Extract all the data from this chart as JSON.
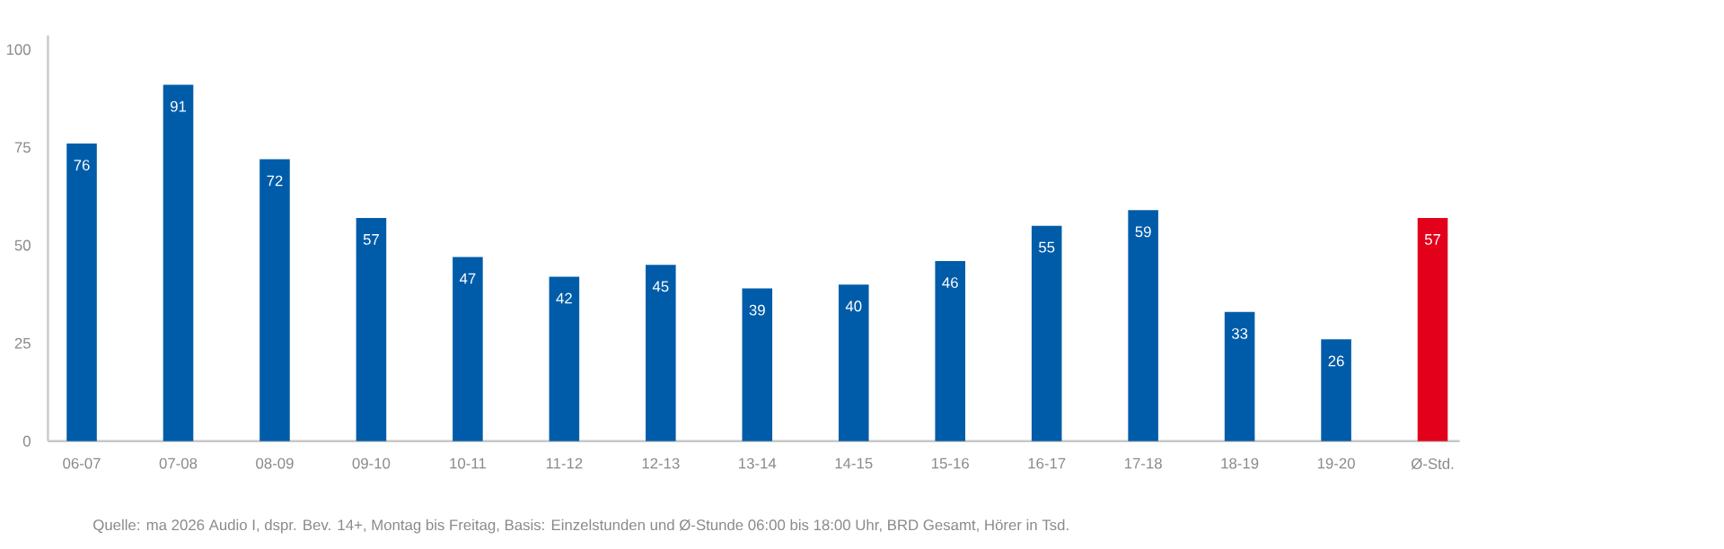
{
  "chart_data": {
    "type": "bar",
    "categories": [
      "06-07",
      "07-08",
      "08-09",
      "09-10",
      "10-11",
      "11-12",
      "12-13",
      "13-14",
      "14-15",
      "15-16",
      "16-17",
      "17-18",
      "18-19",
      "19-20",
      "Ø-Std."
    ],
    "values": [
      76,
      91,
      72,
      57,
      47,
      42,
      45,
      39,
      40,
      46,
      55,
      59,
      33,
      26,
      57
    ],
    "colors": [
      "#005ca9",
      "#005ca9",
      "#005ca9",
      "#005ca9",
      "#005ca9",
      "#005ca9",
      "#005ca9",
      "#005ca9",
      "#005ca9",
      "#005ca9",
      "#005ca9",
      "#005ca9",
      "#005ca9",
      "#005ca9",
      "#e2001a"
    ],
    "ylim": [
      0,
      103.6
    ],
    "yticks": [
      0,
      25,
      50,
      75,
      100
    ],
    "data_labels": true,
    "annotations": [
      "Quelle: ma 2026 Audio I, dspr. Bev. 14+, Montag bis Freitag, Basis: Einzelstunden und Ø-Stunde 06:00 bis 18:00 Uhr, BRD Gesamt, Hörer in Tsd."
    ]
  }
}
